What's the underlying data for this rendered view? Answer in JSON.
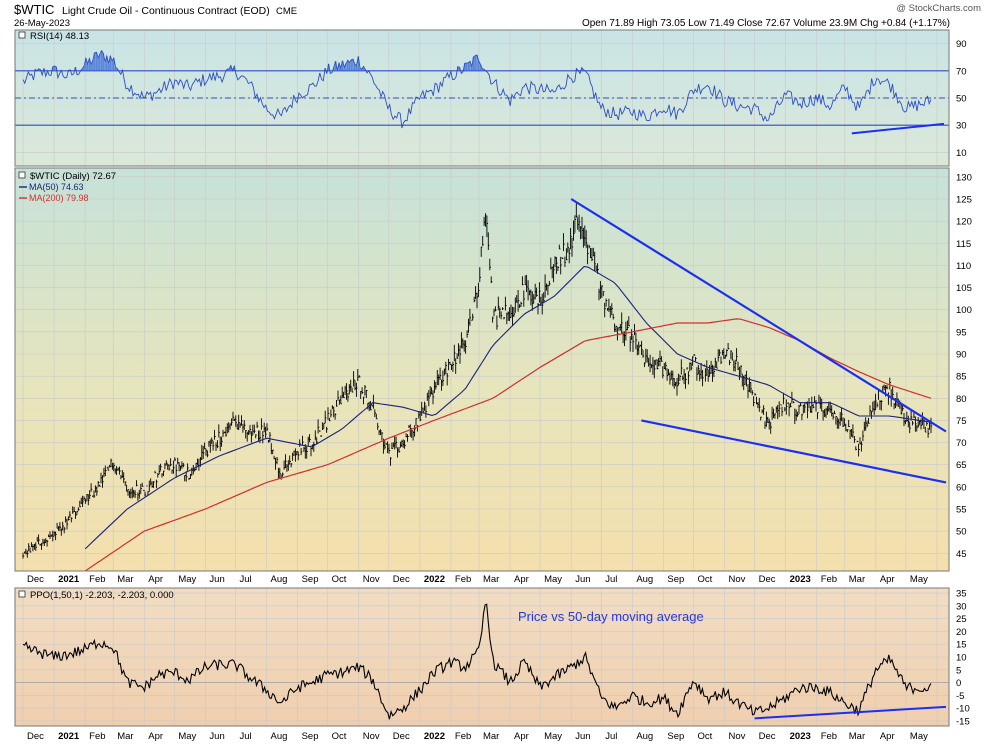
{
  "header": {
    "symbol": "$WTIC",
    "name": "Light Crude Oil - Continuous Contract (EOD)",
    "exchange": "CME",
    "date": "26-May-2023",
    "watermark": "@ StockCharts.com",
    "ohlc": "Open 71.89  High 73.05  Low 71.49  Close 72.67  Volume 23.9M  Chg +0.84 (+1.17%)"
  },
  "colors": {
    "line": "#000000",
    "ma50": "#1a237e",
    "ma200": "#d32f2f",
    "trend": "#1a2ff0",
    "rsi_line": "#2c4fc4",
    "rsi_fill": "#3f6fd8",
    "grid": "#c9c9c9",
    "annotation": "#2338e0"
  },
  "chart_data": [
    {
      "type": "line",
      "panel": "rsi",
      "legend": "RSI(14) 48.13",
      "ylim": [
        0,
        100
      ],
      "yticks": [
        10,
        30,
        50,
        70,
        90
      ],
      "reference_lines": [
        30,
        50,
        70
      ],
      "series": [
        {
          "name": "RSI(14)",
          "x": [
            "2020-12-01",
            "2020-12-15",
            "2021-01-01",
            "2021-01-15",
            "2021-02-01",
            "2021-02-15",
            "2021-03-01",
            "2021-03-15",
            "2021-04-01",
            "2021-04-15",
            "2021-05-01",
            "2021-05-15",
            "2021-06-01",
            "2021-06-15",
            "2021-07-01",
            "2021-07-15",
            "2021-08-01",
            "2021-08-15",
            "2021-09-01",
            "2021-09-15",
            "2021-10-01",
            "2021-10-15",
            "2021-11-01",
            "2021-11-15",
            "2021-12-01",
            "2021-12-15",
            "2022-01-01",
            "2022-01-15",
            "2022-02-01",
            "2022-02-15",
            "2022-03-01",
            "2022-03-15",
            "2022-04-01",
            "2022-04-15",
            "2022-05-01",
            "2022-05-15",
            "2022-06-01",
            "2022-06-15",
            "2022-07-01",
            "2022-07-15",
            "2022-08-01",
            "2022-08-15",
            "2022-09-01",
            "2022-09-15",
            "2022-10-01",
            "2022-10-15",
            "2022-11-01",
            "2022-11-15",
            "2022-12-01",
            "2022-12-15",
            "2023-01-01",
            "2023-01-15",
            "2023-02-01",
            "2023-02-15",
            "2023-03-01",
            "2023-03-15",
            "2023-04-01",
            "2023-04-15",
            "2023-05-01",
            "2023-05-26"
          ],
          "values": [
            62,
            68,
            70,
            66,
            74,
            82,
            78,
            60,
            50,
            55,
            62,
            58,
            64,
            66,
            70,
            60,
            42,
            36,
            52,
            58,
            70,
            74,
            78,
            64,
            42,
            32,
            50,
            56,
            66,
            72,
            80,
            62,
            48,
            58,
            56,
            54,
            66,
            68,
            42,
            38,
            40,
            36,
            44,
            38,
            56,
            60,
            48,
            44,
            42,
            34,
            52,
            46,
            50,
            44,
            58,
            42,
            66,
            60,
            42,
            48
          ]
        }
      ],
      "trendlines": [
        {
          "from": [
            "2023-03-08",
            24
          ],
          "to": [
            "2023-06-08",
            31
          ]
        }
      ]
    },
    {
      "type": "line",
      "panel": "price",
      "legend": [
        "$WTIC (Daily) 72.67",
        "MA(50) 74.63",
        "MA(200) 79.98"
      ],
      "ylim": [
        41,
        132
      ],
      "yticks": [
        45,
        50,
        55,
        60,
        65,
        70,
        75,
        80,
        85,
        90,
        95,
        100,
        105,
        110,
        115,
        120,
        125,
        130
      ],
      "x_tick_labels": [
        "Dec",
        "2021",
        "Feb",
        "Mar",
        "Apr",
        "May",
        "Jun",
        "Jul",
        "Aug",
        "Sep",
        "Oct",
        "Nov",
        "Dec",
        "2022",
        "Feb",
        "Mar",
        "Apr",
        "May",
        "Jun",
        "Jul",
        "Aug",
        "Sep",
        "Oct",
        "Nov",
        "Dec",
        "2023",
        "Feb",
        "Mar",
        "Apr",
        "May"
      ],
      "series": [
        {
          "name": "$WTIC (Daily)",
          "x": [
            "2020-12-01",
            "2020-12-15",
            "2021-01-01",
            "2021-01-15",
            "2021-02-01",
            "2021-02-15",
            "2021-03-01",
            "2021-03-15",
            "2021-04-01",
            "2021-04-15",
            "2021-05-01",
            "2021-05-15",
            "2021-06-01",
            "2021-06-15",
            "2021-07-01",
            "2021-07-15",
            "2021-08-01",
            "2021-08-15",
            "2021-09-01",
            "2021-09-15",
            "2021-10-01",
            "2021-10-15",
            "2021-11-01",
            "2021-11-15",
            "2021-12-01",
            "2021-12-15",
            "2022-01-01",
            "2022-01-15",
            "2022-02-01",
            "2022-02-15",
            "2022-03-01",
            "2022-03-08",
            "2022-03-15",
            "2022-04-01",
            "2022-04-15",
            "2022-05-01",
            "2022-05-15",
            "2022-06-01",
            "2022-06-08",
            "2022-06-15",
            "2022-07-01",
            "2022-07-15",
            "2022-08-01",
            "2022-08-15",
            "2022-09-01",
            "2022-09-15",
            "2022-10-01",
            "2022-10-15",
            "2022-11-01",
            "2022-11-15",
            "2022-12-01",
            "2022-12-15",
            "2023-01-01",
            "2023-01-15",
            "2023-02-01",
            "2023-02-15",
            "2023-03-01",
            "2023-03-15",
            "2023-04-01",
            "2023-04-15",
            "2023-05-01",
            "2023-05-26"
          ],
          "values": [
            45,
            47,
            49,
            52,
            57,
            60,
            66,
            60,
            59,
            63,
            65,
            63,
            68,
            71,
            75,
            72,
            73,
            63,
            68,
            70,
            75,
            80,
            84,
            78,
            67,
            70,
            76,
            82,
            88,
            92,
            106,
            124,
            98,
            100,
            104,
            102,
            110,
            115,
            121,
            117,
            104,
            97,
            94,
            88,
            87,
            84,
            88,
            85,
            91,
            87,
            80,
            74,
            79,
            77,
            78,
            77,
            75,
            68,
            80,
            82,
            75,
            72.7
          ]
        },
        {
          "name": "MA(50)",
          "x": [
            "2021-02-01",
            "2021-03-15",
            "2021-05-01",
            "2021-06-15",
            "2021-08-01",
            "2021-09-15",
            "2021-10-15",
            "2021-11-15",
            "2021-12-15",
            "2022-01-15",
            "2022-02-15",
            "2022-03-15",
            "2022-04-15",
            "2022-05-15",
            "2022-06-15",
            "2022-07-15",
            "2022-08-15",
            "2022-09-15",
            "2022-10-15",
            "2022-11-15",
            "2022-12-15",
            "2023-01-15",
            "2023-02-15",
            "2023-03-15",
            "2023-04-15",
            "2023-05-26"
          ],
          "values": [
            46,
            55,
            62,
            67,
            71,
            69,
            73,
            79,
            78,
            76,
            82,
            92,
            99,
            103,
            110,
            106,
            97,
            90,
            87,
            85,
            83,
            79,
            79,
            76,
            76,
            74.6
          ]
        },
        {
          "name": "MA(200)",
          "x": [
            "2021-02-01",
            "2021-04-01",
            "2021-06-01",
            "2021-08-01",
            "2021-10-01",
            "2021-12-01",
            "2022-01-15",
            "2022-03-15",
            "2022-05-01",
            "2022-06-15",
            "2022-08-01",
            "2022-09-15",
            "2022-10-15",
            "2022-11-15",
            "2022-12-15",
            "2023-01-15",
            "2023-02-15",
            "2023-03-15",
            "2023-04-15",
            "2023-05-26"
          ],
          "values": [
            41,
            50,
            55,
            61,
            65,
            71,
            75,
            80,
            87,
            93,
            95,
            97,
            97,
            98,
            96,
            93,
            89,
            86,
            83,
            80
          ]
        }
      ],
      "trendlines": [
        {
          "from": [
            "2022-06-01",
            125
          ],
          "to": [
            "2023-06-10",
            72.5
          ]
        },
        {
          "from": [
            "2022-08-10",
            75
          ],
          "to": [
            "2023-06-10",
            61
          ]
        }
      ]
    },
    {
      "type": "line",
      "panel": "ppo",
      "legend": "PPO(1,50,1) -2.203, -2.203, 0.000",
      "annotation": "Price vs 50-day moving average",
      "ylim": [
        -17,
        37
      ],
      "yticks": [
        -15,
        -10,
        -5,
        0,
        5,
        10,
        15,
        20,
        25,
        30,
        35
      ],
      "x_tick_labels": [
        "Dec",
        "2021",
        "Feb",
        "Mar",
        "Apr",
        "May",
        "Jun",
        "Jul",
        "Aug",
        "Sep",
        "Oct",
        "Nov",
        "Dec",
        "2022",
        "Feb",
        "Mar",
        "Apr",
        "May",
        "Jun",
        "Jul",
        "Aug",
        "Sep",
        "Oct",
        "Nov",
        "Dec",
        "2023",
        "Feb",
        "Mar",
        "Apr",
        "May"
      ],
      "series": [
        {
          "name": "PPO(1,50,1)",
          "x": [
            "2020-12-01",
            "2020-12-15",
            "2021-01-01",
            "2021-01-15",
            "2021-02-01",
            "2021-02-15",
            "2021-03-01",
            "2021-03-15",
            "2021-04-01",
            "2021-04-15",
            "2021-05-01",
            "2021-05-15",
            "2021-06-01",
            "2021-06-15",
            "2021-07-01",
            "2021-07-15",
            "2021-08-01",
            "2021-08-15",
            "2021-09-01",
            "2021-09-15",
            "2021-10-01",
            "2021-10-15",
            "2021-11-01",
            "2021-11-15",
            "2021-12-01",
            "2021-12-15",
            "2022-01-01",
            "2022-01-15",
            "2022-02-01",
            "2022-02-15",
            "2022-03-01",
            "2022-03-08",
            "2022-03-15",
            "2022-04-01",
            "2022-04-15",
            "2022-05-01",
            "2022-05-15",
            "2022-06-01",
            "2022-06-15",
            "2022-07-01",
            "2022-07-15",
            "2022-08-01",
            "2022-08-15",
            "2022-09-01",
            "2022-09-15",
            "2022-10-01",
            "2022-10-15",
            "2022-11-01",
            "2022-11-15",
            "2022-12-01",
            "2022-12-15",
            "2023-01-01",
            "2023-01-15",
            "2023-02-01",
            "2023-02-15",
            "2023-03-01",
            "2023-03-15",
            "2023-04-01",
            "2023-04-15",
            "2023-05-01",
            "2023-05-26"
          ],
          "values": [
            14,
            12,
            10,
            11,
            13,
            16,
            14,
            0,
            -2,
            3,
            4,
            1,
            6,
            7,
            7,
            2,
            -3,
            -8,
            -2,
            0,
            3,
            4,
            6,
            1,
            -13,
            -10,
            -3,
            4,
            8,
            6,
            12,
            33,
            8,
            0,
            8,
            -2,
            2,
            6,
            10,
            -6,
            -10,
            -5,
            -8,
            -6,
            -12,
            1,
            -6,
            -4,
            -8,
            -12,
            -10,
            -6,
            -2,
            -2,
            -4,
            -8,
            -11,
            5,
            9,
            -2,
            -2.2
          ]
        }
      ],
      "trendlines": [
        {
          "from": [
            "2022-12-01",
            -14
          ],
          "to": [
            "2023-06-10",
            -9.5
          ]
        }
      ]
    }
  ]
}
